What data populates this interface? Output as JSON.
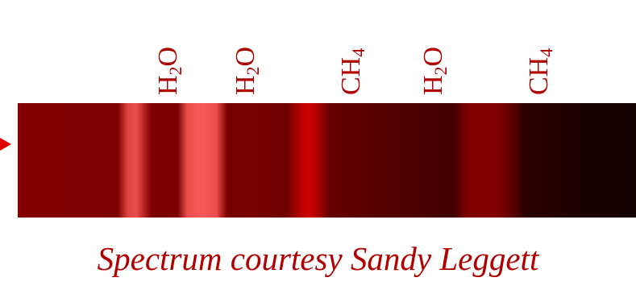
{
  "labels": {
    "h2o_1": {
      "base": "H",
      "sub": "2",
      "tail": "O"
    },
    "h2o_2": {
      "base": "H",
      "sub": "2",
      "tail": "O"
    },
    "ch4_1": {
      "base": "CH",
      "sub": "4",
      "tail": ""
    },
    "h2o_3": {
      "base": "H",
      "sub": "2",
      "tail": "O"
    },
    "ch4_2": {
      "base": "CH",
      "sub": "4",
      "tail": ""
    }
  },
  "caption": "Spectrum courtesy Sandy Leggett",
  "colors": {
    "text": "#b00000",
    "arrow": "#e00000",
    "band_bright": "#ff5050",
    "band_ch4": "#d00000",
    "strip_dark": "#140000"
  }
}
